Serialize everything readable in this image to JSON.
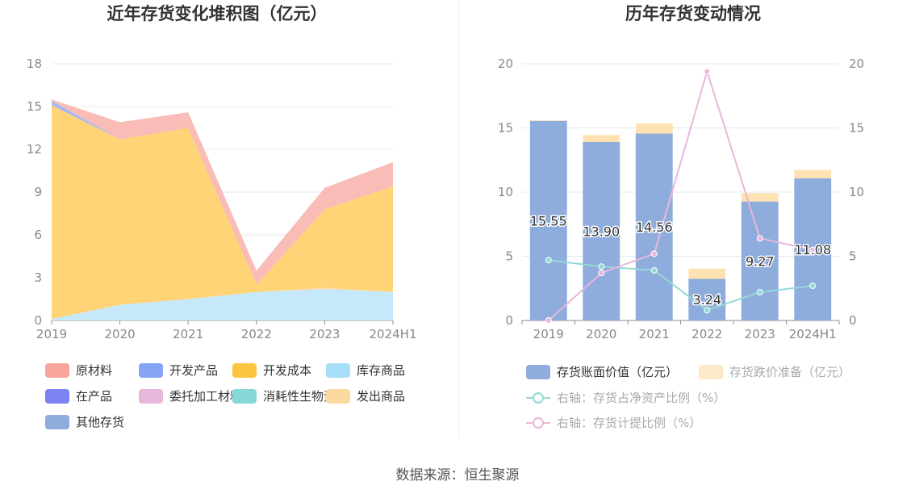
{
  "source_label": "数据来源：恒生聚源",
  "chart_data": [
    {
      "type": "area",
      "title": "近年存货变化堆积图（亿元）",
      "categories": [
        "2019",
        "2020",
        "2021",
        "2022",
        "2023",
        "2024H1"
      ],
      "ylim": [
        0,
        18
      ],
      "yticks": [
        0,
        3,
        6,
        9,
        12,
        15,
        18
      ],
      "stacked": true,
      "grid": true,
      "legend_position": "bottom",
      "series": [
        {
          "name": "库存商品",
          "color": "#c5e9fb",
          "values": [
            0.1,
            1.1,
            1.5,
            2.0,
            2.2,
            2.0
          ]
        },
        {
          "name": "发出商品",
          "color": "#fdd9a2",
          "values": [
            0,
            0,
            0,
            0,
            0.1,
            0
          ]
        },
        {
          "name": "开发成本",
          "color": "#fed477",
          "values": [
            15.0,
            11.6,
            12.0,
            0.5,
            5.5,
            7.4
          ]
        },
        {
          "name": "开发产品",
          "color": "#a3b9f5",
          "values": [
            0.3,
            0,
            0,
            0,
            0,
            0
          ]
        },
        {
          "name": "原材料",
          "color": "#f9bcb6",
          "values": [
            0.1,
            1.2,
            1.1,
            1.0,
            1.5,
            1.7
          ]
        },
        {
          "name": "在产品",
          "color": "#7b82f2",
          "values": [
            0,
            0,
            0,
            0,
            0,
            0
          ]
        },
        {
          "name": "委托加工材料",
          "color": "#e8b7dc",
          "values": [
            0,
            0,
            0,
            0,
            0,
            0
          ]
        },
        {
          "name": "消耗性生物资产",
          "color": "#86d8d8",
          "values": [
            0,
            0,
            0,
            0,
            0,
            0
          ]
        },
        {
          "name": "其他存货",
          "color": "#8eacdc",
          "values": [
            0,
            0,
            0,
            0,
            0,
            0
          ]
        }
      ],
      "legend": [
        {
          "name": "原材料",
          "color": "#f7a59d"
        },
        {
          "name": "开发产品",
          "color": "#86a5f6"
        },
        {
          "name": "开发成本",
          "color": "#fbc53f"
        },
        {
          "name": "库存商品",
          "color": "#a6ddf8"
        },
        {
          "name": "在产品",
          "color": "#7b82f2"
        },
        {
          "name": "委托加工材料",
          "color": "#e8b7dc"
        },
        {
          "name": "消耗性生物资产",
          "color": "#86d8d8"
        },
        {
          "name": "发出商品",
          "color": "#fdd9a2"
        },
        {
          "name": "其他存货",
          "color": "#8eacdc"
        }
      ]
    },
    {
      "type": "bar",
      "title": "历年存货变动情况",
      "categories": [
        "2019",
        "2020",
        "2021",
        "2022",
        "2023",
        "2024H1"
      ],
      "ylim": [
        0,
        20
      ],
      "yticks": [
        0,
        5,
        10,
        15,
        20
      ],
      "y2lim": [
        0,
        20
      ],
      "y2ticks": [
        0,
        5,
        10,
        15,
        20
      ],
      "grid": true,
      "legend_position": "bottom",
      "bar_series": [
        {
          "name": "存货账面价值（亿元）",
          "color": "#8eacdc",
          "values": [
            15.55,
            13.9,
            14.56,
            3.24,
            9.27,
            11.08
          ],
          "labels": [
            "15.55",
            "13.90",
            "14.56",
            "3.24",
            "9.27",
            "11.08"
          ]
        },
        {
          "name": "存货跌价准备（亿元）",
          "color": "#fee2b1",
          "legend_color": "#fde8c8",
          "values": [
            0.05,
            0.55,
            0.8,
            0.8,
            0.65,
            0.65
          ]
        }
      ],
      "line_series": [
        {
          "name": "右轴：存货占净资产比例（%）",
          "color": "#92dad6",
          "axis": "right",
          "values": [
            4.7,
            4.2,
            3.9,
            0.8,
            2.2,
            2.7
          ]
        },
        {
          "name": "右轴：存货计提比例（%）",
          "color": "#e8b7dc",
          "axis": "right",
          "values": [
            0.0,
            3.7,
            5.2,
            19.4,
            6.4,
            5.5
          ]
        }
      ]
    }
  ]
}
